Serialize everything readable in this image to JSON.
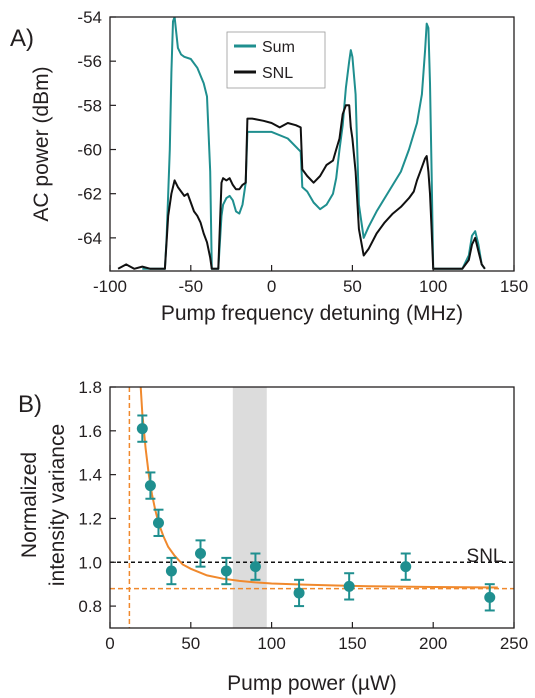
{
  "chart_data": [
    {
      "panel_label": "A)",
      "type": "line",
      "xlabel": "Pump frequency detuning (MHz)",
      "ylabel": "AC power (dBm)",
      "xlim": [
        -100,
        150
      ],
      "ylim": [
        -65.5,
        -54
      ],
      "xticks": [
        -100,
        -50,
        0,
        50,
        100,
        150
      ],
      "xtick_labels": [
        "-100",
        "-50",
        "0",
        "50",
        "100",
        "150"
      ],
      "yticks": [
        -64,
        -62,
        -60,
        -58,
        -56,
        -54
      ],
      "ytick_labels": [
        "-64",
        "-62",
        "-60",
        "-58",
        "-56",
        "-54"
      ],
      "legend": "top-left",
      "colors": {
        "Sum": "#1f8f8f",
        "SNL": "#111111"
      },
      "series": [
        {
          "name": "Sum",
          "x": [
            -80,
            -70,
            -66,
            -65,
            -63,
            -62,
            -61,
            -60,
            -58,
            -56,
            -54,
            -50,
            -46,
            -42,
            -40,
            -38,
            -37,
            -35,
            -33,
            -31,
            -30,
            -28,
            -26,
            -24,
            -22,
            -20,
            -18,
            -16,
            -15,
            -12,
            -5,
            0,
            10,
            18,
            19,
            22,
            26,
            30,
            34,
            38,
            40,
            42,
            44,
            46,
            48,
            49,
            50,
            52,
            54,
            57,
            60,
            65,
            70,
            75,
            80,
            85,
            90,
            93,
            95,
            96,
            97,
            98,
            99,
            100,
            105,
            110,
            118,
            122,
            124,
            126,
            128,
            130,
            132
          ],
          "y": [
            -65.4,
            -65.4,
            -65.4,
            -64.0,
            -60.0,
            -56.5,
            -54.2,
            -54.0,
            -55.4,
            -55.7,
            -55.8,
            -55.9,
            -56.3,
            -57.0,
            -57.6,
            -61.0,
            -65.4,
            -65.4,
            -65.4,
            -63.0,
            -62.5,
            -62.2,
            -62.1,
            -62.3,
            -62.8,
            -62.9,
            -62.5,
            -61.5,
            -59.2,
            -59.2,
            -59.2,
            -59.2,
            -59.5,
            -60.1,
            -61.7,
            -61.9,
            -62.4,
            -62.7,
            -62.5,
            -62.0,
            -61.3,
            -60.0,
            -58.9,
            -57.2,
            -56.0,
            -55.5,
            -55.8,
            -57.5,
            -62.5,
            -64.0,
            -63.5,
            -62.8,
            -62.2,
            -61.6,
            -61.0,
            -60.0,
            -58.8,
            -57.5,
            -55.5,
            -54.3,
            -54.5,
            -57.0,
            -61.0,
            -65.4,
            -65.4,
            -65.4,
            -65.4,
            -64.8,
            -63.9,
            -63.7,
            -64.3,
            -65.2,
            -65.4
          ]
        },
        {
          "name": "SNL",
          "x": [
            -95,
            -90,
            -85,
            -80,
            -75,
            -70,
            -66,
            -64,
            -62,
            -60,
            -58,
            -56,
            -54,
            -52,
            -50,
            -48,
            -46,
            -44,
            -42,
            -40,
            -38,
            -37,
            -35,
            -33,
            -31,
            -30,
            -28,
            -26,
            -24,
            -22,
            -20,
            -18,
            -16,
            -15,
            -12,
            -5,
            0,
            5,
            10,
            15,
            18,
            19,
            22,
            26,
            30,
            34,
            38,
            40,
            42,
            44,
            46,
            48,
            49,
            50,
            52,
            54,
            57,
            60,
            65,
            70,
            75,
            80,
            85,
            88,
            90,
            93,
            95,
            96,
            97,
            98,
            99,
            100,
            105,
            110,
            118,
            122,
            124,
            126,
            128,
            130,
            132
          ],
          "y": [
            -65.4,
            -65.2,
            -65.4,
            -65.3,
            -65.4,
            -65.4,
            -65.4,
            -63.0,
            -62.0,
            -61.4,
            -61.7,
            -61.9,
            -62.1,
            -62.0,
            -62.4,
            -62.8,
            -63.0,
            -63.3,
            -63.8,
            -64.2,
            -64.9,
            -65.4,
            -65.4,
            -65.4,
            -61.5,
            -61.3,
            -61.4,
            -61.3,
            -61.6,
            -61.8,
            -61.8,
            -61.6,
            -61.5,
            -58.6,
            -58.6,
            -58.7,
            -58.8,
            -59.0,
            -58.8,
            -58.9,
            -59.0,
            -60.9,
            -61.2,
            -61.5,
            -61.2,
            -60.7,
            -60.5,
            -60.0,
            -59.5,
            -58.4,
            -58.0,
            -58.0,
            -59.0,
            -59.5,
            -61.0,
            -63.6,
            -64.8,
            -64.5,
            -63.8,
            -63.3,
            -62.9,
            -62.6,
            -62.2,
            -61.9,
            -61.4,
            -60.8,
            -60.4,
            -60.3,
            -61.0,
            -62.0,
            -63.6,
            -65.4,
            -65.4,
            -65.4,
            -65.4,
            -65.0,
            -64.3,
            -64.0,
            -64.6,
            -65.2,
            -65.4
          ]
        }
      ]
    },
    {
      "panel_label": "B)",
      "type": "scatter",
      "xlabel": "Pump power (µW)",
      "ylabel_lines": [
        "Normalized",
        "intensity variance"
      ],
      "xlim": [
        0,
        250
      ],
      "ylim": [
        0.7,
        1.8
      ],
      "xticks": [
        0,
        50,
        100,
        150,
        200,
        250
      ],
      "xtick_labels": [
        "0",
        "50",
        "100",
        "150",
        "200",
        "250"
      ],
      "yticks": [
        0.8,
        1.0,
        1.2,
        1.4,
        1.6,
        1.8
      ],
      "ytick_labels": [
        "0.8",
        "1.0",
        "1.2",
        "1.4",
        "1.6",
        "1.8"
      ],
      "shaded_region_x": [
        76,
        97
      ],
      "snl_level": 1.0,
      "snl_label": "SNL",
      "vertical_asymptote_x": 12,
      "horizontal_asymptote_y": 0.88,
      "colors": {
        "points": "#1f8f8f",
        "fit": "#f0892d",
        "snl": "#111111",
        "shade": "#dcdcdc"
      },
      "points": {
        "x": [
          20,
          25,
          30,
          38,
          56,
          72,
          90,
          117,
          148,
          183,
          235
        ],
        "y": [
          1.61,
          1.35,
          1.18,
          0.96,
          1.04,
          0.96,
          0.98,
          0.86,
          0.89,
          0.98,
          0.84
        ],
        "err": [
          0.06,
          0.06,
          0.06,
          0.06,
          0.06,
          0.06,
          0.06,
          0.06,
          0.06,
          0.06,
          0.06
        ]
      },
      "fit": {
        "x": [
          19,
          20,
          22,
          24,
          26,
          28,
          30,
          33,
          36,
          40,
          45,
          50,
          60,
          70,
          80,
          90,
          100,
          120,
          140,
          160,
          180,
          200,
          220,
          240
        ],
        "y": [
          1.8,
          1.68,
          1.52,
          1.4,
          1.31,
          1.24,
          1.18,
          1.12,
          1.07,
          1.03,
          0.99,
          0.97,
          0.94,
          0.925,
          0.915,
          0.908,
          0.903,
          0.898,
          0.894,
          0.891,
          0.889,
          0.887,
          0.886,
          0.885
        ]
      }
    }
  ]
}
